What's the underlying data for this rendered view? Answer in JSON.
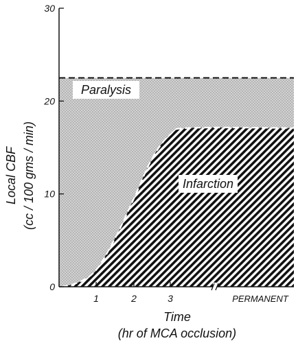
{
  "chart_data": {
    "type": "area",
    "ylabel_line1": "Local CBF",
    "ylabel_line2": "(cc / 100 gms / min)",
    "xlabel_line1": "Time",
    "xlabel_line2": "(hr of MCA occlusion)",
    "ylim": [
      0,
      30
    ],
    "yticks": [
      "0",
      "10",
      "20",
      "30"
    ],
    "xticks": [
      {
        "label": "1",
        "value": 1
      },
      {
        "label": "2",
        "value": 2
      },
      {
        "label": "3",
        "value": 3
      },
      {
        "label": "PERMANENT",
        "value": "permanent"
      }
    ],
    "regions": {
      "paralysis": {
        "label": "Paralysis",
        "threshold": 22.5
      },
      "infarction": {
        "label": "Infarction",
        "x": [
          0,
          0.5,
          1,
          1.5,
          2,
          2.5,
          3,
          3.5,
          "permanent"
        ],
        "y": [
          0,
          0.5,
          1.8,
          5.2,
          9.5,
          13.8,
          16.4,
          17.1,
          17.1
        ]
      }
    }
  }
}
